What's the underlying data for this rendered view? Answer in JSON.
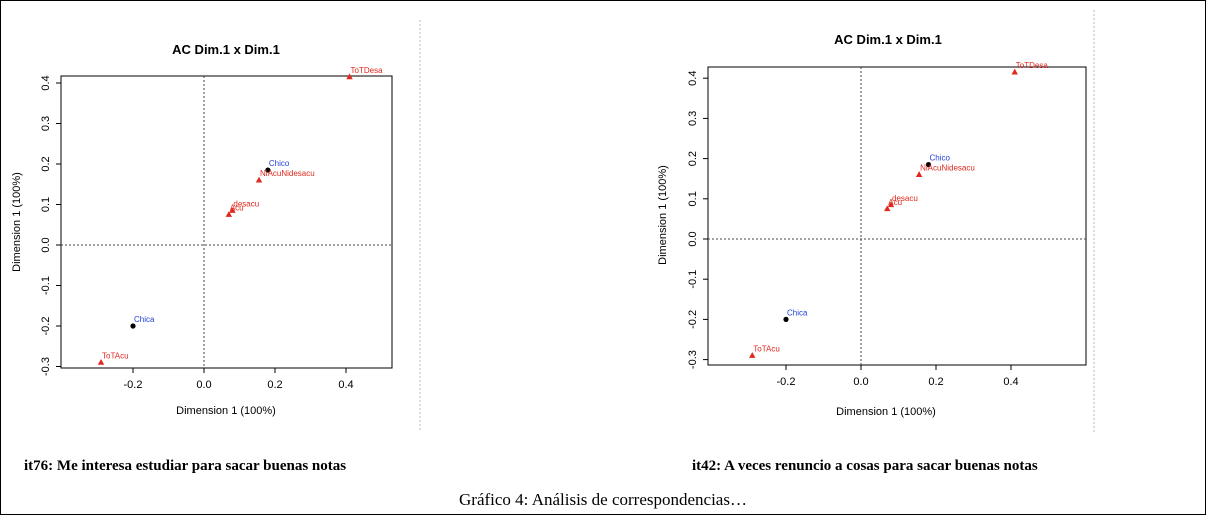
{
  "chart_data": [
    {
      "type": "scatter",
      "title": "AC Dim.1 x Dim.1",
      "xlabel": "Dimension 1 (100%)",
      "ylabel": "Dimension 1 (100%)",
      "xticks": [
        -0.2,
        0.0,
        0.2,
        0.4
      ],
      "yticks": [
        -0.3,
        -0.2,
        -0.1,
        0.0,
        0.1,
        0.2,
        0.3,
        0.4
      ],
      "reference_lines": {
        "x": 0,
        "y": 0,
        "style": "dotted"
      },
      "series": [
        {
          "color": "#1f3fd6",
          "marker": "circle",
          "points": [
            {
              "label": "Chico",
              "x": 0.18,
              "y": 0.185
            },
            {
              "label": "Chica",
              "x": -0.2,
              "y": -0.2
            }
          ]
        },
        {
          "color": "#e0281e",
          "marker": "triangle",
          "points": [
            {
              "label": "ToTDesa",
              "x": 0.41,
              "y": 0.415
            },
            {
              "label": "NiAcuNidesacu",
              "x": 0.155,
              "y": 0.16
            },
            {
              "label": "desacu",
              "x": 0.08,
              "y": 0.085
            },
            {
              "label": "Acu",
              "x": 0.07,
              "y": 0.075
            },
            {
              "label": "ToTAcu",
              "x": -0.29,
              "y": -0.29
            }
          ]
        }
      ]
    },
    {
      "type": "scatter",
      "title": "AC Dim.1 x Dim.1",
      "xlabel": "Dimension 1 (100%)",
      "ylabel": "Dimension 1 (100%)",
      "xticks": [
        -0.2,
        0.0,
        0.2,
        0.4
      ],
      "yticks": [
        -0.3,
        -0.2,
        -0.1,
        0.0,
        0.1,
        0.2,
        0.3,
        0.4
      ],
      "reference_lines": {
        "x": 0,
        "y": 0,
        "style": "dotted"
      },
      "series": [
        {
          "color": "#1f3fd6",
          "marker": "circle",
          "points": [
            {
              "label": "Chico",
              "x": 0.18,
              "y": 0.185
            },
            {
              "label": "Chica",
              "x": -0.2,
              "y": -0.2
            }
          ]
        },
        {
          "color": "#e0281e",
          "marker": "triangle",
          "points": [
            {
              "label": "ToTDesa",
              "x": 0.41,
              "y": 0.415
            },
            {
              "label": "NiAcuNidesacu",
              "x": 0.155,
              "y": 0.16
            },
            {
              "label": "desacu",
              "x": 0.08,
              "y": 0.085
            },
            {
              "label": "Acu",
              "x": 0.07,
              "y": 0.075
            },
            {
              "label": "ToTAcu",
              "x": -0.29,
              "y": -0.29
            }
          ]
        }
      ]
    }
  ],
  "captions": {
    "left": "it76: Me interesa estudiar para sacar buenas notas",
    "right": "it42: A veces renuncio a cosas para sacar buenas notas",
    "figure": "Gráfico 4: Análisis de correspondencias…"
  }
}
